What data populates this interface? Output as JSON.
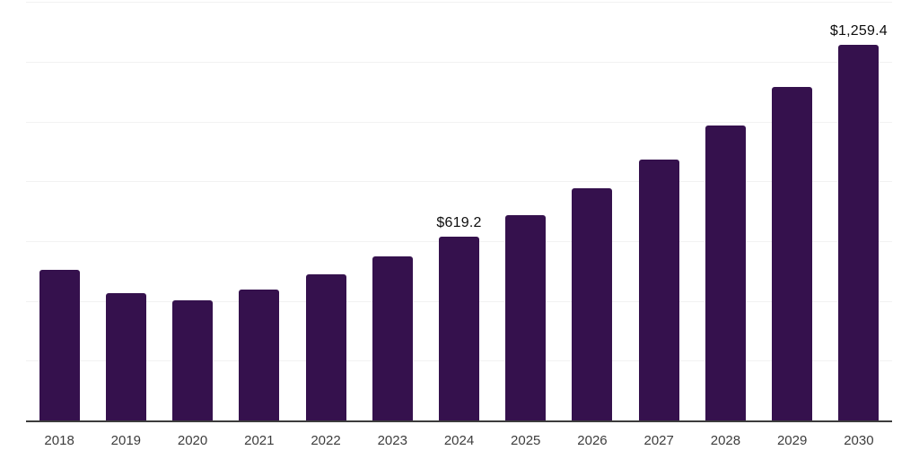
{
  "chart_data": {
    "type": "bar",
    "title": "",
    "xlabel": "",
    "ylabel": "",
    "categories": [
      "2018",
      "2019",
      "2020",
      "2021",
      "2022",
      "2023",
      "2024",
      "2025",
      "2026",
      "2027",
      "2028",
      "2029",
      "2030"
    ],
    "values": [
      507,
      429,
      405,
      441,
      492,
      552,
      619.2,
      690,
      780,
      876,
      990,
      1119,
      1259.4
    ],
    "point_labels": {
      "2024": "$619.2",
      "2030": "$1,259.4"
    },
    "ylim": [
      0,
      1410
    ],
    "gridline_step": 200,
    "grid": "horizontal-only",
    "legend": "none",
    "colors": {
      "bar": "#35114D",
      "axis_line": "#3c3c3c",
      "gridline": "#f2f2f2",
      "tick_label": "#3d3d3d",
      "data_label": "#0d0d0d",
      "background": "#ffffff"
    }
  }
}
